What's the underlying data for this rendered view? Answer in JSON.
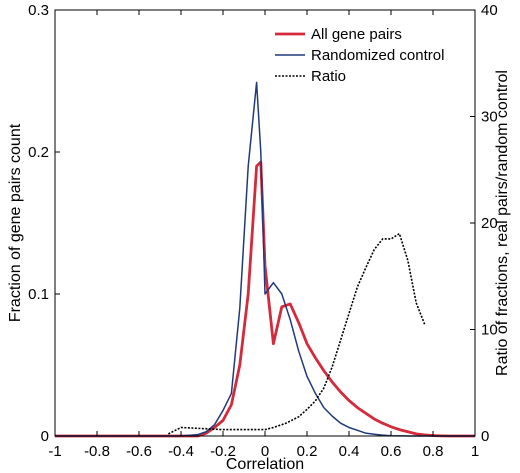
{
  "chart_data": {
    "type": "line",
    "xlabel": "Correlation",
    "ylabel_left": "Fraction of gene pairs count",
    "ylabel_right": "Ratio of fractions, real pairs/random control",
    "xlim": [
      -1,
      1
    ],
    "ylim_left": [
      0,
      0.3
    ],
    "ylim_right": [
      0,
      40
    ],
    "x_ticks": [
      -1,
      -0.8,
      -0.6,
      -0.4,
      -0.2,
      0,
      0.2,
      0.4,
      0.6,
      0.8,
      1
    ],
    "x_tick_labels": [
      "-1",
      "-0.8",
      "-0.6",
      "-0.4",
      "-0.2",
      "0",
      "0.2",
      "0.4",
      "0.6",
      "0.8",
      "1"
    ],
    "y_left_ticks": [
      0,
      0.1,
      0.2,
      0.3
    ],
    "y_left_tick_labels": [
      "0",
      "0.1",
      "0.2",
      "0.3"
    ],
    "y_right_ticks": [
      0,
      10,
      20,
      30,
      40
    ],
    "y_right_tick_labels": [
      "0",
      "10",
      "20",
      "30",
      "40"
    ],
    "grid": false,
    "legend_position": "top-right",
    "series": [
      {
        "name": "All gene pairs",
        "axis": "left",
        "color": "#d42a3c",
        "style": "solid-thick",
        "x": [
          -1,
          -0.4,
          -0.32,
          -0.28,
          -0.24,
          -0.2,
          -0.16,
          -0.12,
          -0.08,
          -0.04,
          -0.02,
          0,
          0.04,
          0.08,
          0.12,
          0.16,
          0.2,
          0.24,
          0.28,
          0.32,
          0.36,
          0.4,
          0.44,
          0.48,
          0.52,
          0.56,
          0.6,
          0.64,
          0.68,
          0.72,
          0.76,
          0.8,
          0.84,
          0.88,
          0.92,
          1
        ],
        "y": [
          0,
          0,
          0,
          0.002,
          0.006,
          0.011,
          0.022,
          0.05,
          0.1,
          0.19,
          0.193,
          0.12,
          0.065,
          0.091,
          0.093,
          0.08,
          0.065,
          0.055,
          0.046,
          0.038,
          0.031,
          0.025,
          0.02,
          0.016,
          0.012,
          0.009,
          0.0065,
          0.0045,
          0.003,
          0.0015,
          0.0008,
          0.0003,
          0.0001,
          0,
          0,
          0
        ]
      },
      {
        "name": "Randomized control",
        "axis": "left",
        "color": "#1f3a7a",
        "style": "solid",
        "x": [
          -1,
          -0.4,
          -0.32,
          -0.28,
          -0.24,
          -0.2,
          -0.16,
          -0.12,
          -0.08,
          -0.04,
          -0.02,
          0,
          0.04,
          0.08,
          0.12,
          0.16,
          0.2,
          0.24,
          0.28,
          0.32,
          0.36,
          0.4,
          0.44,
          0.48,
          0.52,
          0.56,
          0.6,
          0.7,
          1
        ],
        "y": [
          0,
          0,
          0.001,
          0.003,
          0.008,
          0.018,
          0.03,
          0.09,
          0.19,
          0.249,
          0.2,
          0.1,
          0.108,
          0.1,
          0.082,
          0.06,
          0.042,
          0.03,
          0.02,
          0.014,
          0.009,
          0.006,
          0.004,
          0.002,
          0.0012,
          0.0006,
          0.0002,
          0,
          0
        ]
      },
      {
        "name": "Ratio",
        "axis": "right",
        "color": "#000000",
        "style": "dotted",
        "x": [
          -0.46,
          -0.4,
          -0.3,
          -0.2,
          -0.1,
          0,
          0.04,
          0.1,
          0.16,
          0.2,
          0.24,
          0.28,
          0.32,
          0.36,
          0.4,
          0.44,
          0.48,
          0.52,
          0.56,
          0.6,
          0.64,
          0.68,
          0.72,
          0.76
        ],
        "y": [
          0.2,
          0.8,
          0.7,
          0.6,
          0.6,
          0.6,
          0.8,
          1.2,
          1.8,
          2.5,
          3.3,
          4.5,
          6.5,
          9.0,
          11.5,
          14.0,
          15.8,
          17.5,
          18.5,
          18.5,
          19.0,
          16.5,
          12.5,
          10.5
        ]
      }
    ]
  }
}
